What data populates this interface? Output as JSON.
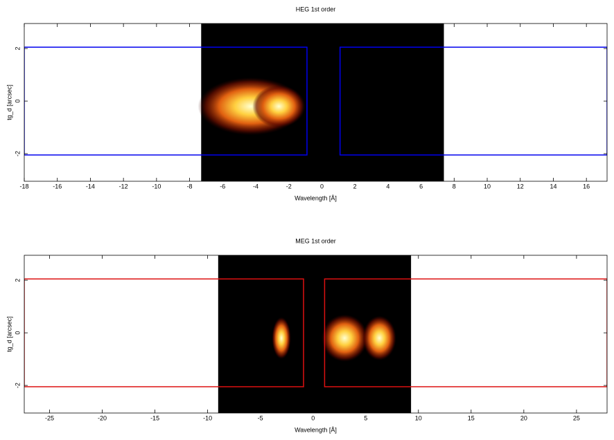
{
  "chart_data": [
    {
      "type": "heatmap",
      "title": "HEG 1st order",
      "xlabel": "Wavelength [Å]",
      "ylabel": "tg_d [arcsec]",
      "xlim": [
        -18,
        17.25
      ],
      "ylim": [
        -3.05,
        2.95
      ],
      "xticks": [
        -18,
        -16,
        -14,
        -12,
        -10,
        -8,
        -6,
        -4,
        -2,
        0,
        2,
        4,
        6,
        8,
        10,
        12,
        14,
        16
      ],
      "yticks": [
        -2,
        0,
        2
      ],
      "image_extent": [
        -7.3,
        7.38
      ],
      "hotspots": [
        {
          "x": -4.3,
          "y": -0.2,
          "rx": 3.2,
          "ry": 1.1
        },
        {
          "x": -2.6,
          "y": -0.2,
          "rx": 1.6,
          "ry": 0.8
        }
      ],
      "region_color": "#0000ee",
      "regions": [
        {
          "x": [
            -18,
            -0.9
          ],
          "y": [
            -2.05,
            2.05
          ]
        },
        {
          "x": [
            1.1,
            17.25
          ],
          "y": [
            -2.05,
            2.05
          ]
        }
      ]
    },
    {
      "type": "heatmap",
      "title": "MEG 1st order",
      "xlabel": "Wavelength [Å]",
      "ylabel": "tg_d [arcsec]",
      "xlim": [
        -27.4,
        27.9
      ],
      "ylim": [
        -3.05,
        2.95
      ],
      "xticks": [
        -25,
        -20,
        -15,
        -10,
        -5,
        0,
        5,
        10,
        15,
        20,
        25
      ],
      "yticks": [
        -2,
        0,
        2
      ],
      "image_extent": [
        -9.0,
        9.3
      ],
      "hotspots": [
        {
          "x": -3.0,
          "y": -0.2,
          "rx": 0.9,
          "ry": 0.8
        },
        {
          "x": 3.0,
          "y": -0.2,
          "rx": 2.2,
          "ry": 0.9
        },
        {
          "x": 6.3,
          "y": -0.2,
          "rx": 1.6,
          "ry": 0.85
        }
      ],
      "region_color": "#dd1111",
      "regions": [
        {
          "x": [
            -27.4,
            -0.9
          ],
          "y": [
            -2.05,
            2.05
          ]
        },
        {
          "x": [
            1.1,
            27.9
          ],
          "y": [
            -2.05,
            2.05
          ]
        }
      ]
    }
  ]
}
